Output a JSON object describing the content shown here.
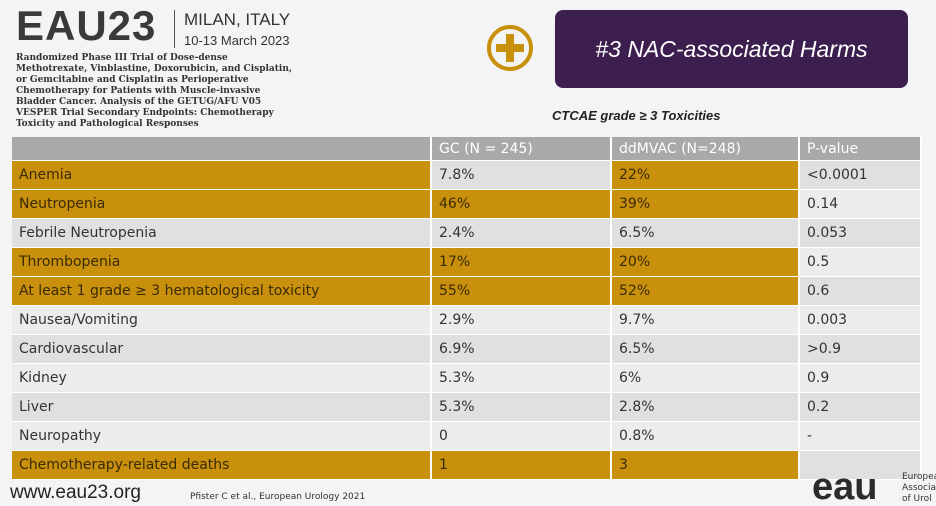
{
  "header": {
    "logo": "EAU23",
    "city": "MILAN, ITALY",
    "dates": "10-13 March 2023",
    "study": "Randomized Phase III Trial of Dose-dense Methotrexate, Vinblastine, Doxorubicin, and Cisplatin, or Gemcitabine and Cisplatin as Perioperative Chemotherapy for Patients with Muscle-invasive Bladder Cancer. Analysis of the GETUG/AFU V05 VESPER Trial Secondary Endpoints: Chemotherapy Toxicity and Pathological Responses",
    "badge": "#3 NAC-associated Harms"
  },
  "table": {
    "caption": "CTCAE grade ≥ 3 Toxicities",
    "columns": [
      "",
      "GC (N = 245)",
      "ddMVAC (N=248)",
      "P-value"
    ],
    "rows": [
      [
        "Anemia",
        "7.8%",
        "22%",
        "<0.0001"
      ],
      [
        "Neutropenia",
        "46%",
        "39%",
        "0.14"
      ],
      [
        "Febrile Neutropenia",
        "2.4%",
        "6.5%",
        "0.053"
      ],
      [
        "Thrombopenia",
        "17%",
        "20%",
        "0.5"
      ],
      [
        "At least 1 grade ≥ 3 hematological toxicity",
        "55%",
        "52%",
        "0.6"
      ],
      [
        "Nausea/Vomiting",
        "2.9%",
        "9.7%",
        "0.003"
      ],
      [
        "Cardiovascular",
        "6.9%",
        "6.5%",
        ">0.9"
      ],
      [
        "Kidney",
        "5.3%",
        "6%",
        "0.9"
      ],
      [
        "Liver",
        "5.3%",
        "2.8%",
        "0.2"
      ],
      [
        "Neuropathy",
        "0",
        "0.8%",
        "-"
      ],
      [
        "Chemotherapy-related deaths",
        "1",
        "3",
        ""
      ]
    ],
    "highlight": [
      [
        true,
        false,
        true,
        false
      ],
      [
        true,
        true,
        true,
        false
      ],
      [
        false,
        false,
        false,
        false
      ],
      [
        true,
        true,
        true,
        false
      ],
      [
        true,
        true,
        true,
        false
      ],
      [
        false,
        false,
        false,
        false
      ],
      [
        false,
        false,
        false,
        false
      ],
      [
        false,
        false,
        false,
        false
      ],
      [
        false,
        false,
        false,
        false
      ],
      [
        false,
        false,
        false,
        false
      ],
      [
        true,
        true,
        true,
        false
      ]
    ]
  },
  "footer": {
    "url": "www.eau23.org",
    "reference": "Pfister C et al., European Urology 2021",
    "logo": "eau",
    "org": [
      "Europea",
      "Associa",
      "of Urol"
    ]
  }
}
